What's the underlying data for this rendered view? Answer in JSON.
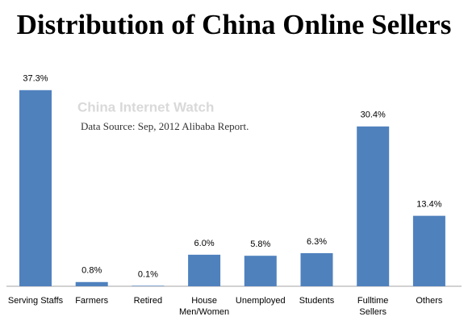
{
  "chart_data": {
    "type": "bar",
    "title": "Distribution of China Online Sellers",
    "watermark": "China Internet Watch",
    "source": "Data Source:  Sep, 2012 Alibaba Report.",
    "categories": [
      "Serving Staffs",
      "Farmers",
      "Retired",
      "House\nMen/Women",
      "Unemployed",
      "Students",
      "Fulltime\nSellers",
      "Others"
    ],
    "values": [
      37.3,
      0.8,
      0.1,
      6.0,
      5.8,
      6.3,
      30.4,
      13.4
    ],
    "value_labels": [
      "37.3%",
      "0.8%",
      "0.1%",
      "6.0%",
      "5.8%",
      "6.3%",
      "30.4%",
      "13.4%"
    ],
    "color": "#4f81bd"
  }
}
